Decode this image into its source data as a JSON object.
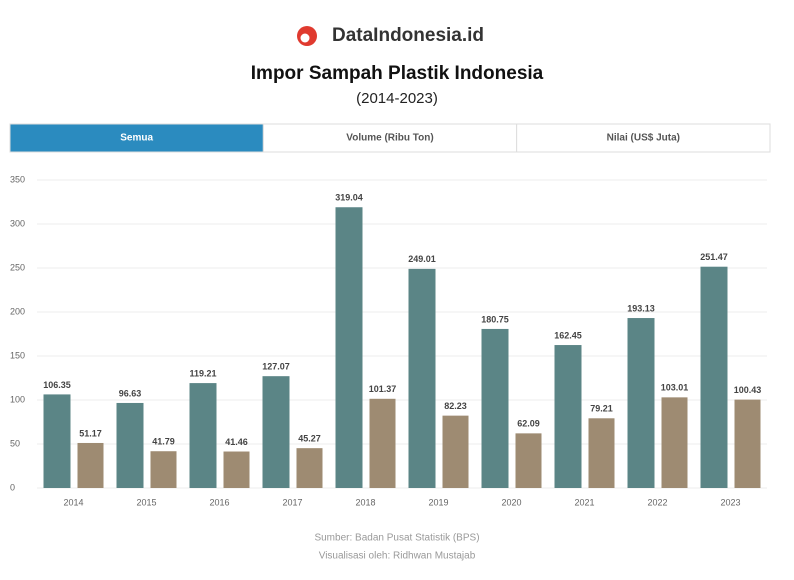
{
  "brand": "DataIndonesia.id",
  "chart_data": {
    "type": "bar",
    "title": "Impor Sampah Plastik Indonesia",
    "subtitle": "(2014-2023)",
    "tabs": [
      "Semua",
      "Volume (Ribu Ton)",
      "Nilai (US$ Juta)"
    ],
    "active_tab": 0,
    "categories": [
      "2014",
      "2015",
      "2016",
      "2017",
      "2018",
      "2019",
      "2020",
      "2021",
      "2022",
      "2023"
    ],
    "series": [
      {
        "color": "#5b8586",
        "values": [
          106.35,
          96.63,
          119.21,
          127.07,
          319.04,
          249.01,
          180.75,
          162.45,
          193.13,
          251.47
        ]
      },
      {
        "color": "#9e8b72",
        "values": [
          51.17,
          41.79,
          41.46,
          45.27,
          101.37,
          82.23,
          62.09,
          79.21,
          103.01,
          100.43
        ]
      }
    ],
    "ylim": [
      0,
      350
    ],
    "yticks": [
      0,
      50,
      100,
      150,
      200,
      250,
      300,
      350
    ],
    "grid": true,
    "source": "Sumber: Badan Pusat Statistik (BPS)",
    "credit": "Visualisasi oleh: Ridhwan Mustajab"
  }
}
